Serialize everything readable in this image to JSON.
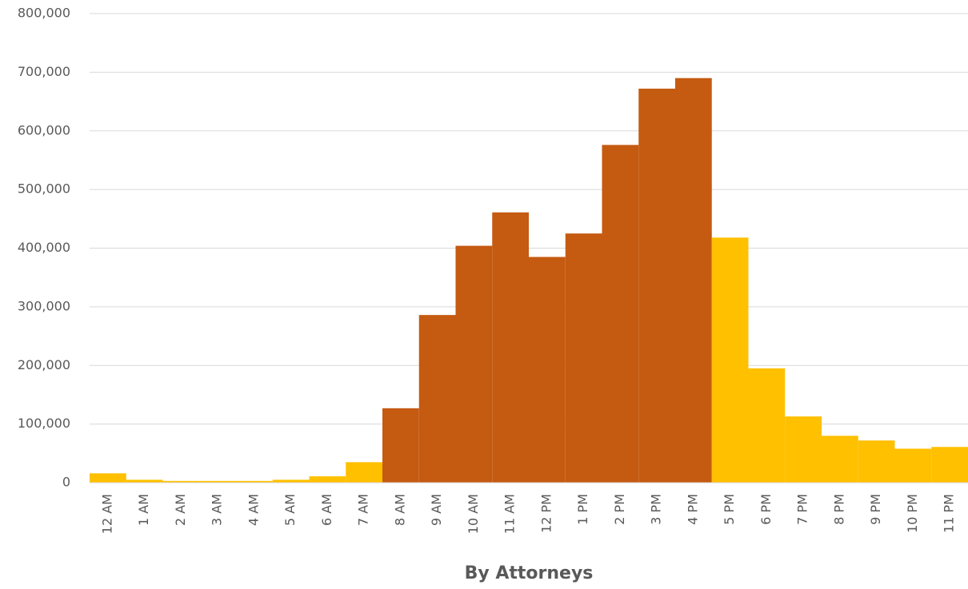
{
  "chart_data": {
    "type": "bar",
    "xlabel": "By Attorneys",
    "categories": [
      "12 AM",
      "1 AM",
      "2 AM",
      "3 AM",
      "4 AM",
      "5 AM",
      "6 AM",
      "7 AM",
      "8 AM",
      "9 AM",
      "10 AM",
      "11 AM",
      "12 PM",
      "1 PM",
      "2 PM",
      "3 PM",
      "4 PM",
      "5 PM",
      "6 PM",
      "7 PM",
      "8 PM",
      "9 PM",
      "10 PM",
      "11 PM"
    ],
    "values": [
      16000,
      5000,
      3000,
      3000,
      3000,
      5000,
      11000,
      35000,
      127000,
      286000,
      404000,
      461000,
      385000,
      425000,
      576000,
      672000,
      690000,
      418000,
      195000,
      113000,
      80000,
      72000,
      58000,
      61000
    ],
    "colors": [
      "#ffc000",
      "#ffc000",
      "#ffc000",
      "#ffc000",
      "#ffc000",
      "#ffc000",
      "#ffc000",
      "#ffc000",
      "#c55a11",
      "#c55a11",
      "#c55a11",
      "#c55a11",
      "#c55a11",
      "#c55a11",
      "#c55a11",
      "#c55a11",
      "#c55a11",
      "#ffc000",
      "#ffc000",
      "#ffc000",
      "#ffc000",
      "#ffc000",
      "#ffc000",
      "#ffc000"
    ],
    "ylim": [
      0,
      800000
    ],
    "yticks": [
      0,
      {
        "value": 100000,
        "label": "100,000"
      },
      {
        "value": 200000,
        "label": "200,000"
      },
      {
        "value": 300000,
        "label": "300,000"
      },
      {
        "value": 400000,
        "label": "400,000"
      },
      {
        "value": 500000,
        "label": "500,000"
      },
      {
        "value": 600000,
        "label": "600,000"
      },
      {
        "value": 700000,
        "label": "700,000"
      },
      {
        "value": 800000,
        "label": "800,000"
      }
    ],
    "grid": true
  }
}
